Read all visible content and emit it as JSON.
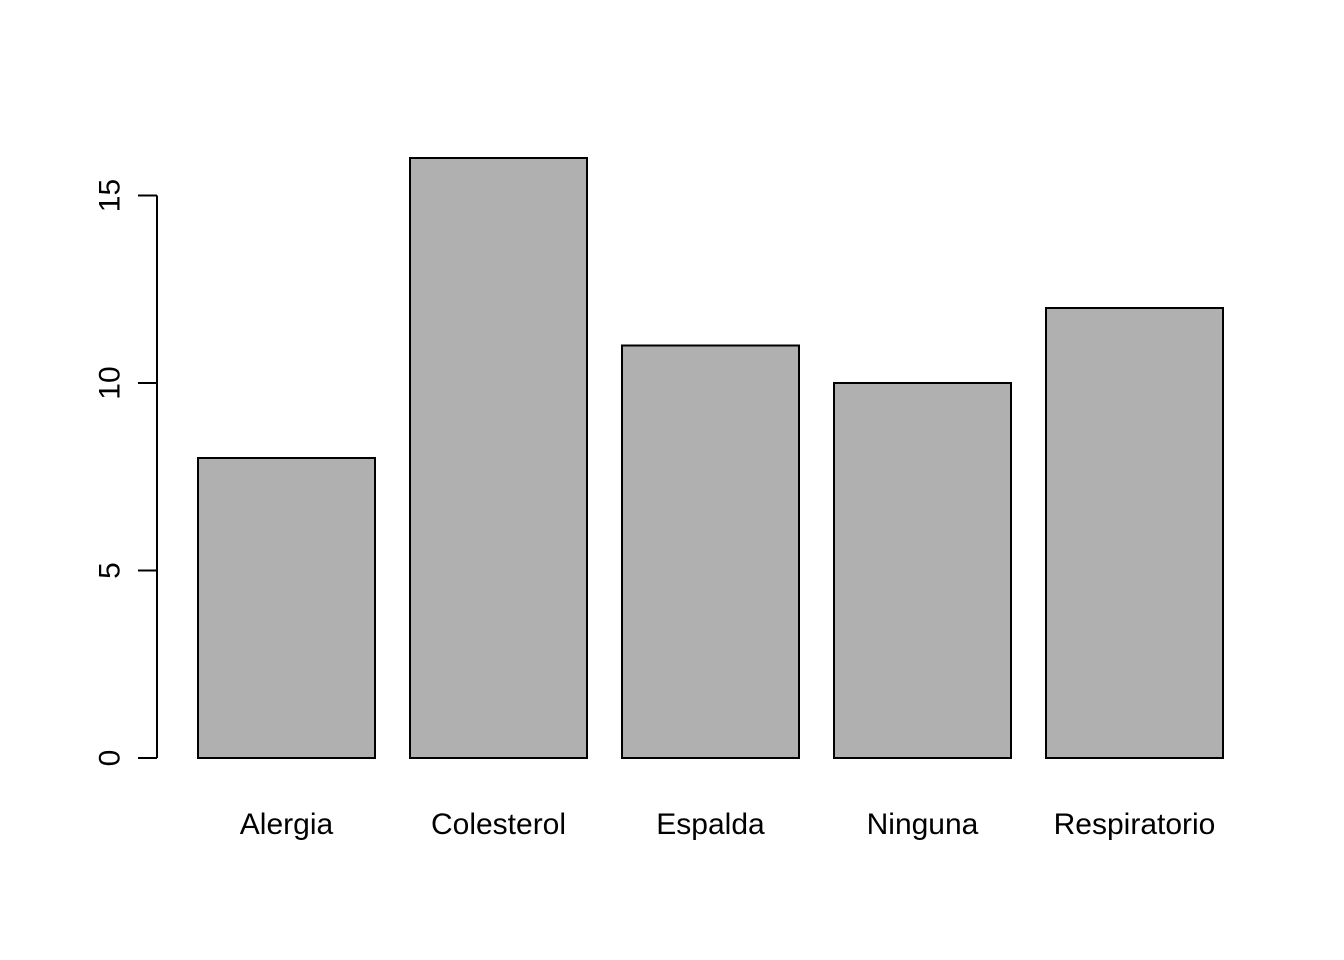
{
  "chart_data": {
    "type": "bar",
    "categories": [
      "Alergia",
      "Colesterol",
      "Espalda",
      "Ninguna",
      "Respiratorio"
    ],
    "values": [
      8,
      16,
      11,
      10,
      12
    ],
    "title": "",
    "xlabel": "",
    "ylabel": "",
    "ylim": [
      0,
      16
    ],
    "yticks": [
      0,
      5,
      10,
      15
    ],
    "ytick_labels": [
      "0",
      "5",
      "10",
      "15"
    ],
    "grid": false,
    "bar_color": "#b0b0b0",
    "bar_edge_color": "#000000"
  }
}
